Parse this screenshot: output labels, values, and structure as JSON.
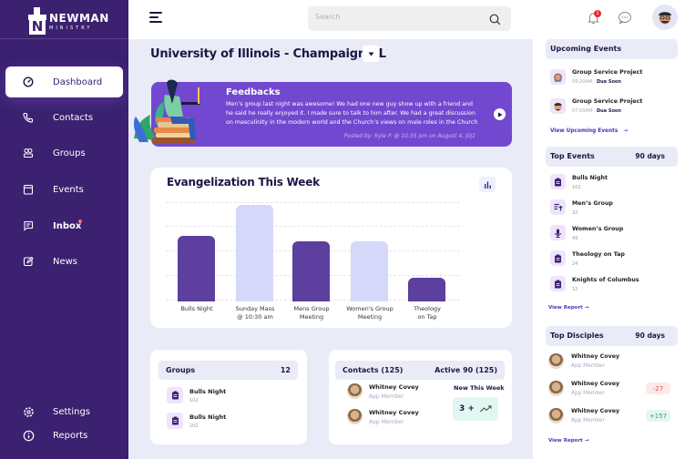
{
  "brand": {
    "name": "NEWMAN",
    "sub": "MINISTRY",
    "accent": "#3b2170"
  },
  "sidebar": {
    "items": [
      {
        "label": "Dashboard",
        "icon": "dashboard-icon",
        "active": true
      },
      {
        "label": "Contacts",
        "icon": "phone-icon"
      },
      {
        "label": "Groups",
        "icon": "groups-icon"
      },
      {
        "label": "Events",
        "icon": "calendar-icon"
      },
      {
        "label": "Inbox",
        "icon": "inbox-icon",
        "badge": true
      },
      {
        "label": "News",
        "icon": "news-icon"
      }
    ],
    "bottom": [
      {
        "label": "Settings",
        "icon": "gear-icon"
      },
      {
        "label": "Reports",
        "icon": "info-icon"
      }
    ]
  },
  "topbar": {
    "search_placeholder": "Search",
    "notification_count": "1"
  },
  "campus": {
    "name": "University of Illinois - Champaign, IL"
  },
  "feedback": {
    "title": "Feedbacks",
    "body": "Men’s group last night was awesome! We had one new guy show up with a friend and he said he really enjoyed it. I made sure to talk to him after. We had a great discussion on masculinity in the modern world and the Church’s views on male roles in the Church",
    "meta": "Posted by: Kyle P. @ 10:35 pm on August 4, j0j1"
  },
  "chart_data": {
    "type": "bar",
    "title": "Evangelization This Week",
    "categories": [
      "Bulls Night",
      "Sunday Mass @ 10:30 am",
      "Mens Group Meeting",
      "Women's Group Meeting",
      "Theology on Tap"
    ],
    "category_lines": [
      [
        "Bulls Night"
      ],
      [
        "Sunday Mass",
        "@ 10:30 am"
      ],
      [
        "Mens Group",
        "Meeting"
      ],
      [
        "Women's Group",
        "Meeting"
      ],
      [
        "Theology",
        "on Tap"
      ]
    ],
    "values": [
      74,
      109,
      68,
      68,
      27
    ],
    "colors": [
      "#5c3f9e",
      "#d6d8fa",
      "#5c3f9e",
      "#d6d8fa",
      "#5c3f9e"
    ],
    "xlabel": "",
    "ylabel": "",
    "ylim": [
      0,
      110
    ],
    "grid": true,
    "legend": "none"
  },
  "groups_card": {
    "title": "Groups",
    "count": "12",
    "items": [
      {
        "name": "Bulls Night",
        "count": "102"
      },
      {
        "name": "Bulls Night",
        "count": "102"
      }
    ]
  },
  "contacts_card": {
    "title": "Contacts (125)",
    "active": "Active 90 (125)",
    "items": [
      {
        "name": "Whitney Covey",
        "role": "App Member"
      },
      {
        "name": "Whitney Covey",
        "role": "App Member"
      }
    ],
    "new_label": "New This Week",
    "new_value": "3 +"
  },
  "upcoming": {
    "title": "Upcoming Events",
    "items": [
      {
        "name": "Group Service Project",
        "time": "09:20AM",
        "status": "Due Soon"
      },
      {
        "name": "Group Service Project",
        "time": "07:00AM",
        "status": "Due Soon"
      }
    ],
    "link": "View Upcoming Events"
  },
  "top_events": {
    "title": "Top Events",
    "range": "90 days",
    "items": [
      {
        "name": "Bulls Night",
        "count": "102",
        "icon": "clipboard-icon"
      },
      {
        "name": "Men’s Group",
        "count": "32",
        "icon": "list-arrow-icon"
      },
      {
        "name": "Women’s Group",
        "count": "49",
        "icon": "microphone-icon"
      },
      {
        "name": "Theology on Tap",
        "count": "24",
        "icon": "clipboard-icon"
      },
      {
        "name": "Knights of Columbus",
        "count": "12",
        "icon": "clipboard-icon"
      }
    ],
    "link": "View Report"
  },
  "top_disciples": {
    "title": "Top Disciples",
    "range": "90 days",
    "items": [
      {
        "name": "Whitney Covey",
        "role": "App Member",
        "delta": ""
      },
      {
        "name": "Whitney Covey",
        "role": "App Member",
        "delta": "-27"
      },
      {
        "name": "Whitney Covey",
        "role": "App Member",
        "delta": "+157"
      }
    ],
    "link": "View Report"
  }
}
